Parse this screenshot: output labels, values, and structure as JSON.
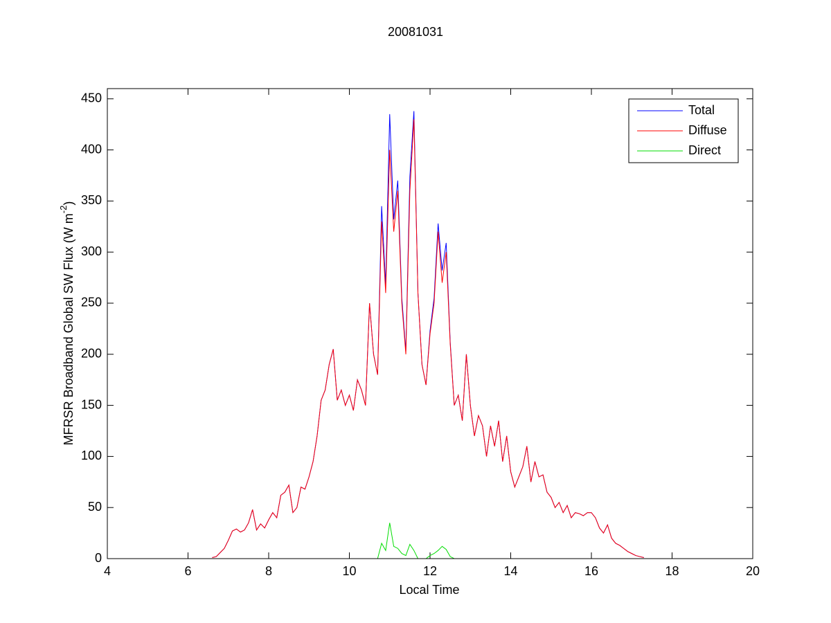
{
  "chart_data": {
    "type": "line",
    "title": "20081031",
    "xlabel": "Local Time",
    "ylabel": [
      "MFRSR Broadband Global SW Flux (W m",
      "-2",
      ")"
    ],
    "xlim": [
      4,
      20
    ],
    "xticks": [
      4,
      6,
      8,
      10,
      12,
      14,
      16,
      18,
      20
    ],
    "ylim": [
      0,
      460
    ],
    "yticks": [
      0,
      50,
      100,
      150,
      200,
      250,
      300,
      350,
      400,
      450
    ],
    "legend": "northeast",
    "x": [
      6.6,
      6.7,
      6.8,
      6.9,
      7.0,
      7.1,
      7.2,
      7.3,
      7.4,
      7.5,
      7.6,
      7.7,
      7.8,
      7.9,
      8.0,
      8.1,
      8.2,
      8.3,
      8.4,
      8.5,
      8.6,
      8.7,
      8.8,
      8.9,
      9.0,
      9.1,
      9.2,
      9.3,
      9.4,
      9.5,
      9.6,
      9.7,
      9.8,
      9.9,
      10.0,
      10.1,
      10.2,
      10.3,
      10.4,
      10.5,
      10.6,
      10.7,
      10.8,
      10.9,
      11.0,
      11.1,
      11.2,
      11.3,
      11.4,
      11.5,
      11.6,
      11.7,
      11.8,
      11.9,
      12.0,
      12.1,
      12.2,
      12.3,
      12.4,
      12.5,
      12.6,
      12.7,
      12.8,
      12.9,
      13.0,
      13.1,
      13.2,
      13.3,
      13.4,
      13.5,
      13.6,
      13.7,
      13.8,
      13.9,
      14.0,
      14.1,
      14.2,
      14.3,
      14.4,
      14.5,
      14.6,
      14.7,
      14.8,
      14.9,
      15.0,
      15.1,
      15.2,
      15.3,
      15.4,
      15.5,
      15.6,
      15.7,
      15.8,
      15.9,
      16.0,
      16.1,
      16.2,
      16.3,
      16.4,
      16.5,
      16.6,
      16.7,
      16.8,
      16.9,
      17.0,
      17.1,
      17.2,
      17.3
    ],
    "series": [
      {
        "name": "Total",
        "color": "#0000ff",
        "values": [
          1,
          2,
          6,
          10,
          18,
          27,
          29,
          26,
          28,
          35,
          48,
          28,
          34,
          30,
          38,
          45,
          40,
          62,
          65,
          72,
          45,
          50,
          70,
          68,
          80,
          95,
          120,
          155,
          165,
          190,
          205,
          155,
          165,
          150,
          160,
          145,
          175,
          165,
          150,
          250,
          200,
          180,
          345,
          268,
          435,
          332,
          370,
          255,
          203,
          374,
          438,
          260,
          190,
          170,
          223,
          255,
          328,
          282,
          309,
          212,
          150,
          160,
          135,
          200,
          150,
          120,
          140,
          130,
          100,
          130,
          110,
          135,
          95,
          120,
          85,
          70,
          80,
          90,
          110,
          75,
          95,
          80,
          82,
          65,
          60,
          50,
          55,
          45,
          52,
          40,
          45,
          44,
          42,
          45,
          45,
          40,
          30,
          25,
          33,
          20,
          15,
          13,
          10,
          7,
          5,
          3,
          2,
          1
        ]
      },
      {
        "name": "Diffuse",
        "color": "#ff0000",
        "values": [
          1,
          2,
          6,
          10,
          18,
          27,
          29,
          26,
          28,
          35,
          48,
          28,
          34,
          30,
          38,
          45,
          40,
          62,
          65,
          72,
          45,
          50,
          70,
          68,
          80,
          95,
          120,
          155,
          165,
          190,
          205,
          155,
          165,
          150,
          160,
          145,
          175,
          165,
          150,
          250,
          200,
          180,
          330,
          260,
          400,
          320,
          360,
          250,
          200,
          360,
          430,
          260,
          190,
          170,
          220,
          250,
          320,
          270,
          300,
          210,
          150,
          160,
          135,
          200,
          150,
          120,
          140,
          130,
          100,
          130,
          110,
          135,
          95,
          120,
          85,
          70,
          80,
          90,
          110,
          75,
          95,
          80,
          82,
          65,
          60,
          50,
          55,
          45,
          52,
          40,
          45,
          44,
          42,
          45,
          45,
          40,
          30,
          25,
          33,
          20,
          15,
          13,
          10,
          7,
          5,
          3,
          2,
          1
        ]
      },
      {
        "name": "Direct",
        "color": "#00dd00",
        "values": [
          0,
          0,
          0,
          0,
          0,
          0,
          0,
          0,
          0,
          0,
          0,
          0,
          0,
          0,
          0,
          0,
          0,
          0,
          0,
          0,
          0,
          0,
          0,
          0,
          0,
          0,
          0,
          0,
          0,
          0,
          0,
          0,
          0,
          0,
          0,
          0,
          0,
          0,
          0,
          0,
          0,
          0,
          15,
          8,
          35,
          12,
          10,
          5,
          3,
          14,
          8,
          0,
          0,
          0,
          3,
          5,
          8,
          12,
          9,
          2,
          0,
          0,
          0,
          0,
          0,
          0,
          0,
          0,
          0,
          0,
          0,
          0,
          0,
          0,
          0,
          0,
          0,
          0,
          0,
          0,
          0,
          0,
          0,
          0,
          0,
          0,
          0,
          0,
          0,
          0,
          0,
          0,
          0,
          0,
          0,
          0,
          0,
          0,
          0,
          0,
          0,
          0,
          0,
          0,
          0,
          0,
          0,
          0
        ]
      }
    ]
  }
}
